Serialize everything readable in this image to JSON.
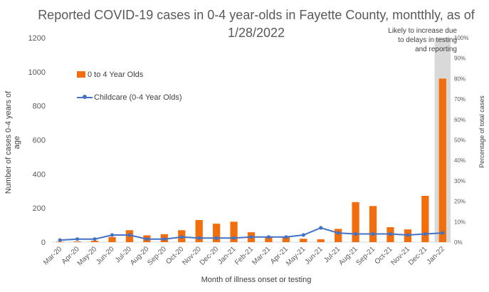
{
  "chart_data": {
    "type": "bar+line",
    "title_line1": "Reported COVID-19 cases in 0-4 year-olds in Fayette County, montthly, as of",
    "title_line2": "1/28/2022",
    "annotation": [
      "Likely to increase due",
      "to delays in testing",
      "and reporting"
    ],
    "ylabel_left": "Number of cases 0-4 years of age",
    "ylabel_right": "Percentage of total cases",
    "xlabel": "Month of illness onset or testing",
    "categories": [
      "Mar-20",
      "Apr-20",
      "May-20",
      "Jun-20",
      "Jul-20",
      "Aug-20",
      "Sep-20",
      "Oct-20",
      "Nov-20",
      "Dec-20",
      "Jan-21",
      "Feb-21",
      "Mar-21",
      "Apr-21",
      "May-21",
      "Jun-21",
      "Jul-21",
      "Aug-21",
      "Sep-21",
      "Oct-21",
      "Nov-21",
      "Dec-21",
      "Jan-22"
    ],
    "ylim_left": [
      0,
      1200
    ],
    "yticks_left": [
      "0",
      "200",
      "400",
      "600",
      "800",
      "1000",
      "1200"
    ],
    "ylim_right": [
      0,
      100
    ],
    "yticks_right": [
      "0%",
      "10%",
      "20%",
      "30%",
      "40%",
      "50%",
      "60%",
      "70%",
      "80%",
      "90%",
      "100%"
    ],
    "series": [
      {
        "name": "0 to 4 Year Olds",
        "type": "bar",
        "axis": "left",
        "color": "#F26D0B",
        "values": [
          3,
          4,
          8,
          30,
          70,
          40,
          47,
          70,
          130,
          108,
          120,
          58,
          30,
          30,
          20,
          17,
          78,
          235,
          212,
          88,
          75,
          272,
          960
        ]
      },
      {
        "name": "Childcare (0-4 Year Olds)",
        "type": "line",
        "axis": "right",
        "color": "#4472C4",
        "values": [
          1,
          1.5,
          1.5,
          3.5,
          3.5,
          1.5,
          1.5,
          2.5,
          2,
          2,
          2,
          2.5,
          2.5,
          2.5,
          3.5,
          7,
          4.5,
          4,
          4,
          4,
          3.5,
          4,
          4.5
        ]
      }
    ],
    "highlight_last_category": true,
    "grid": false,
    "legend_position": "left"
  }
}
